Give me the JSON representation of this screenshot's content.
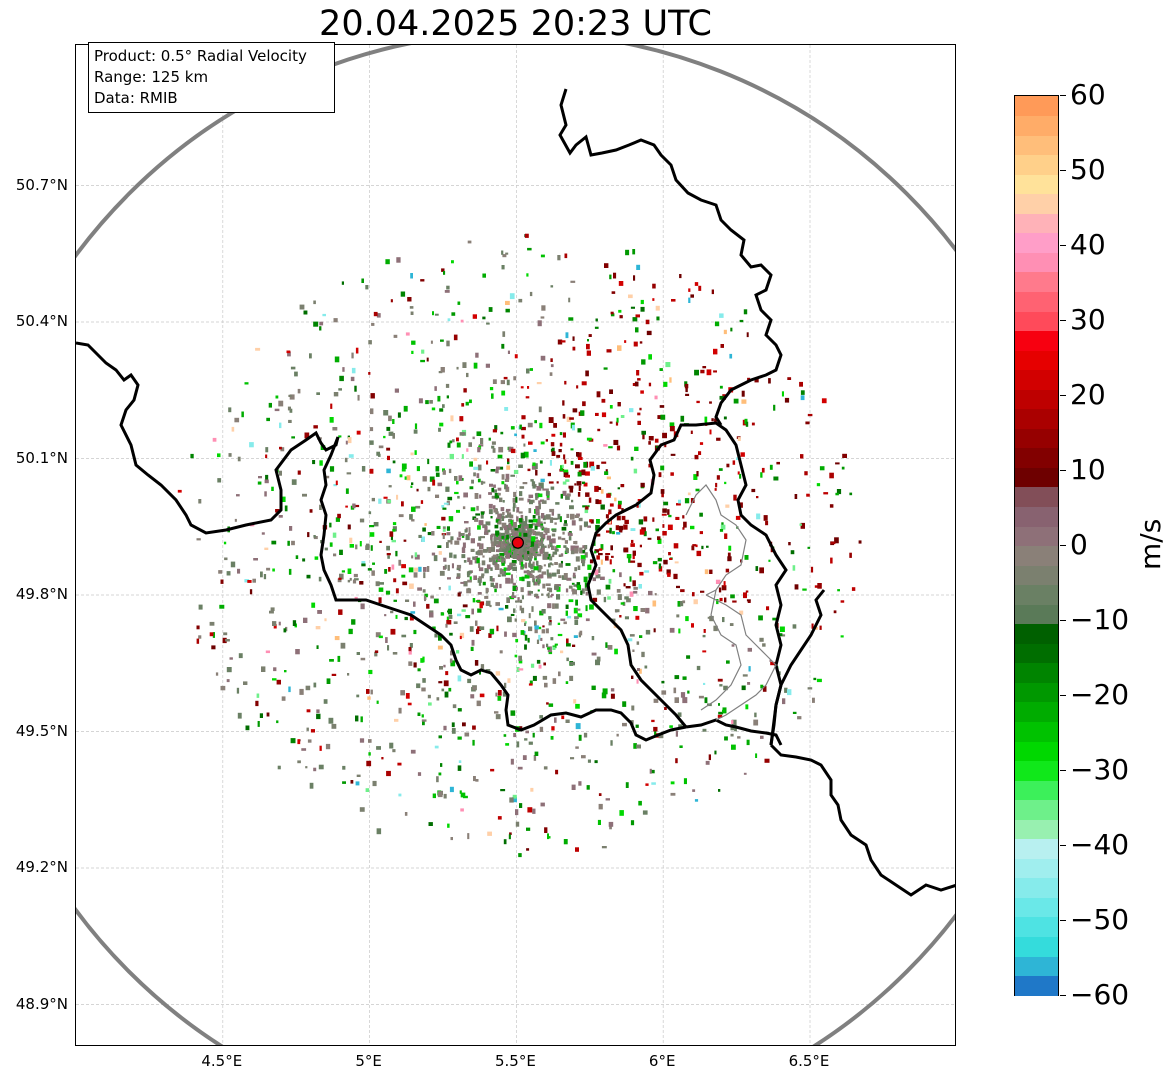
{
  "title": "20.04.2025 20:23 UTC",
  "info_box": {
    "product": "Product: 0.5° Radial Velocity",
    "range": "Range: 125 km",
    "data": "Data: RMIB"
  },
  "axes": {
    "lat_ticks": [
      "50.7°N",
      "50.4°N",
      "50.1°N",
      "49.8°N",
      "49.5°N",
      "49.2°N",
      "48.9°N"
    ],
    "lat_values": [
      50.7,
      50.4,
      50.1,
      49.8,
      49.5,
      49.2,
      48.9
    ],
    "lon_ticks": [
      "4.5°E",
      "5°E",
      "5.5°E",
      "6°E",
      "6.5°E"
    ],
    "lon_values": [
      4.5,
      5.0,
      5.5,
      6.0,
      6.5
    ],
    "lon_range": [
      4.0,
      7.0
    ],
    "lat_range": [
      48.8,
      51.0
    ],
    "grid": true
  },
  "radar_site": {
    "lon": 5.505,
    "lat": 49.915,
    "color": "#e8000f"
  },
  "range_ring_color": "#808080",
  "colorbar": {
    "unit": "m/s",
    "range": [
      -60,
      60
    ],
    "ticks": [
      "60",
      "50",
      "40",
      "30",
      "20",
      "10",
      "0",
      "−10",
      "−20",
      "−30",
      "−40",
      "−50",
      "−60"
    ],
    "tick_values": [
      60,
      50,
      40,
      30,
      20,
      10,
      0,
      -10,
      -20,
      -30,
      -40,
      -50,
      -60
    ],
    "colors": [
      "#1f78c8",
      "#2eb5d6",
      "#34dcdc",
      "#4ee3e3",
      "#6ae8e8",
      "#86ebeb",
      "#a0eeee",
      "#b8f0f0",
      "#98f0b0",
      "#6ef08a",
      "#3cf05a",
      "#10e81a",
      "#00d800",
      "#00c200",
      "#00ac00",
      "#009800",
      "#008400",
      "#006e00",
      "#006000",
      "#5a7a58",
      "#6a8064",
      "#7b806f",
      "#8a8078",
      "#8e7078",
      "#886270",
      "#824e58",
      "#6e0000",
      "#820000",
      "#960000",
      "#aa0000",
      "#be0000",
      "#d20000",
      "#e60000",
      "#f70010",
      "#ff4a5a",
      "#ff6272",
      "#ff7a8c",
      "#ff8fb4",
      "#ff9ec8",
      "#ffb2b8",
      "#ffd0a8",
      "#ffe29a",
      "#ffd08a",
      "#ffbe7a",
      "#ffac68",
      "#ff9a58"
    ]
  }
}
